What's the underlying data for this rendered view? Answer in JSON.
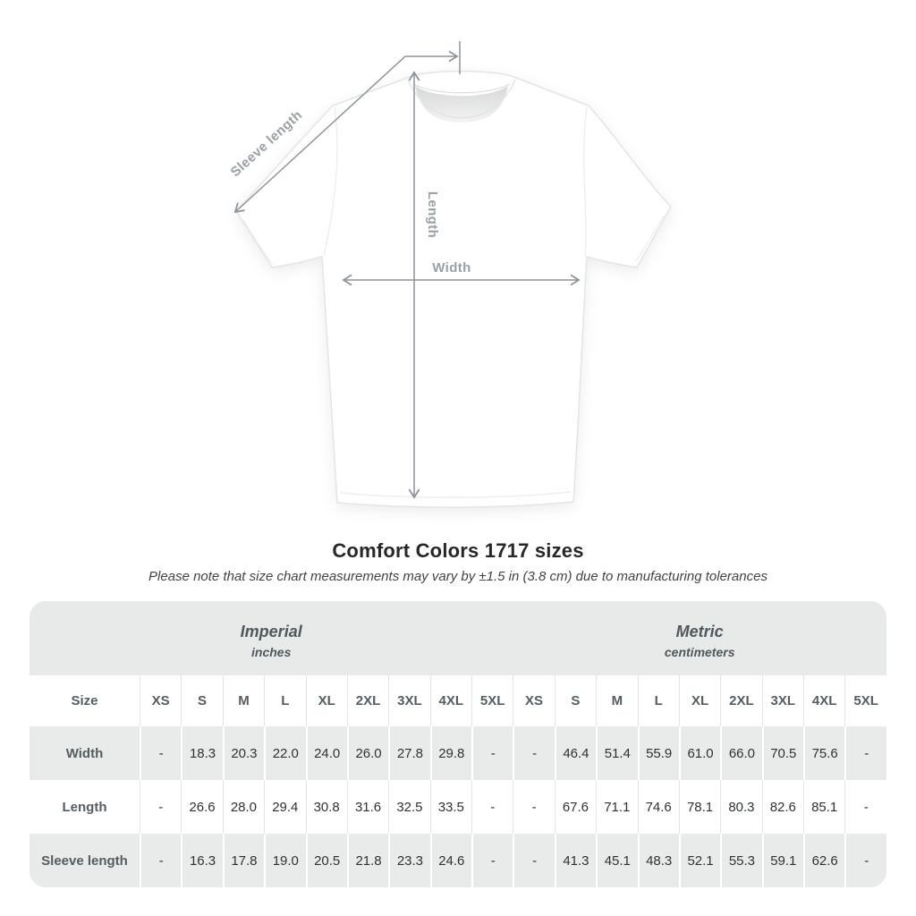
{
  "title": "Comfort Colors 1717 sizes",
  "subtitle": "Please note that size chart measurements may vary by ±1.5 in (3.8 cm) due to manufacturing tolerances",
  "diagram": {
    "labels": {
      "sleeve_length": "Sleeve length",
      "length": "Length",
      "width": "Width"
    }
  },
  "table": {
    "groups": [
      {
        "label": "Imperial",
        "sublabel": "inches"
      },
      {
        "label": "Metric",
        "sublabel": "centimeters"
      }
    ],
    "size_header": "Size",
    "size_columns": [
      "XS",
      "S",
      "M",
      "L",
      "XL",
      "2XL",
      "3XL",
      "4XL",
      "5XL"
    ],
    "rows": [
      {
        "label": "Width",
        "imperial": [
          "-",
          "18.3",
          "20.3",
          "22.0",
          "24.0",
          "26.0",
          "27.8",
          "29.8",
          "-"
        ],
        "metric": [
          "-",
          "46.4",
          "51.4",
          "55.9",
          "61.0",
          "66.0",
          "70.5",
          "75.6",
          "-"
        ]
      },
      {
        "label": "Length",
        "imperial": [
          "-",
          "26.6",
          "28.0",
          "29.4",
          "30.8",
          "31.6",
          "32.5",
          "33.5",
          "-"
        ],
        "metric": [
          "-",
          "67.6",
          "71.1",
          "74.6",
          "78.1",
          "80.3",
          "82.6",
          "85.1",
          "-"
        ]
      },
      {
        "label": "Sleeve length",
        "imperial": [
          "-",
          "16.3",
          "17.8",
          "19.0",
          "20.5",
          "21.8",
          "23.3",
          "24.6",
          "-"
        ],
        "metric": [
          "-",
          "41.3",
          "45.1",
          "48.3",
          "52.1",
          "55.3",
          "59.1",
          "62.6",
          "-"
        ]
      }
    ]
  },
  "colors": {
    "group_header_bg": "#e8e9e9",
    "row_stripe_bg": "#e9eaea",
    "header_text": "#545d62",
    "value_text": "#2f3234",
    "diagram_line": "#8e9499",
    "diagram_label": "#9aa0a5",
    "title_text": "#272727"
  }
}
